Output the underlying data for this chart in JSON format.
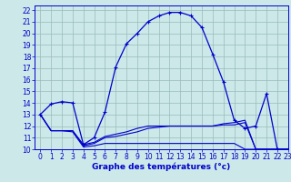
{
  "bg_color": "#cce8e8",
  "line_color": "#0000cc",
  "grid_color": "#99bbbb",
  "xlabel": "Graphe des températures (°c)",
  "xlim": [
    -0.5,
    23
  ],
  "ylim": [
    10,
    22.4
  ],
  "yticks": [
    10,
    11,
    12,
    13,
    14,
    15,
    16,
    17,
    18,
    19,
    20,
    21,
    22
  ],
  "xticks": [
    0,
    1,
    2,
    3,
    4,
    5,
    6,
    7,
    8,
    9,
    10,
    11,
    12,
    13,
    14,
    15,
    16,
    17,
    18,
    19,
    20,
    21,
    22,
    23
  ],
  "curve1_x": [
    0,
    1,
    2,
    3,
    4,
    5,
    6,
    7,
    8,
    9,
    10,
    11,
    12,
    13,
    14,
    15,
    16,
    17,
    18,
    19,
    20,
    21,
    22,
    23
  ],
  "curve1_y": [
    13.0,
    13.9,
    14.1,
    14.0,
    10.4,
    11.0,
    13.2,
    17.1,
    19.1,
    20.0,
    21.0,
    21.5,
    21.8,
    21.8,
    21.5,
    20.5,
    18.2,
    15.8,
    12.5,
    11.8,
    12.0,
    14.8,
    10.0,
    10.0
  ],
  "curve2_x": [
    0,
    1,
    2,
    3,
    4,
    5,
    6,
    7,
    8,
    9,
    10,
    11,
    12,
    13,
    14,
    15,
    16,
    17,
    18,
    19,
    20,
    21,
    22,
    23
  ],
  "curve2_y": [
    13.0,
    11.6,
    11.6,
    11.6,
    10.4,
    10.6,
    11.1,
    11.3,
    11.5,
    11.8,
    12.0,
    12.0,
    12.0,
    12.0,
    12.0,
    12.0,
    12.0,
    12.2,
    12.3,
    12.5,
    10.0,
    10.0,
    10.0,
    10.0
  ],
  "curve3_x": [
    0,
    1,
    2,
    3,
    4,
    5,
    6,
    7,
    8,
    9,
    10,
    11,
    12,
    13,
    14,
    15,
    16,
    17,
    18,
    19,
    20,
    21,
    22,
    23
  ],
  "curve3_y": [
    13.0,
    11.6,
    11.6,
    11.6,
    10.3,
    10.5,
    11.0,
    11.1,
    11.3,
    11.5,
    11.8,
    11.9,
    12.0,
    12.0,
    12.0,
    12.0,
    12.0,
    12.1,
    12.1,
    12.3,
    10.0,
    10.0,
    10.0,
    10.0
  ],
  "curve4_x": [
    0,
    1,
    2,
    3,
    4,
    5,
    6,
    7,
    8,
    9,
    10,
    11,
    12,
    13,
    14,
    15,
    16,
    17,
    18,
    19,
    20,
    21,
    22,
    23
  ],
  "curve4_y": [
    13.0,
    11.6,
    11.6,
    11.5,
    10.2,
    10.3,
    10.5,
    10.5,
    10.5,
    10.5,
    10.5,
    10.5,
    10.5,
    10.5,
    10.5,
    10.5,
    10.5,
    10.5,
    10.5,
    10.0,
    10.0,
    10.0,
    10.0,
    10.0
  ],
  "tick_fontsize": 5.5,
  "xlabel_fontsize": 6.5
}
